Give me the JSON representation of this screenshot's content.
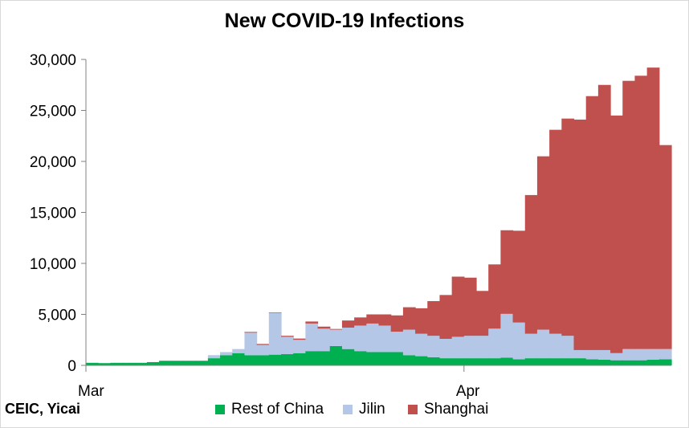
{
  "chart_data": {
    "type": "bar",
    "stacked": true,
    "title": "New COVID-19 Infections",
    "xlabel": "",
    "ylabel": "",
    "ylim": [
      0,
      30000
    ],
    "y_ticks": [
      "0",
      "5,000",
      "10,000",
      "15,000",
      "20,000",
      "25,000",
      "30,000"
    ],
    "y_tick_values": [
      0,
      5000,
      10000,
      15000,
      20000,
      25000,
      30000
    ],
    "x_tick_labels": [
      {
        "label": "Mar",
        "index": 0
      },
      {
        "label": "Apr",
        "index": 31
      }
    ],
    "grid": false,
    "legend_position": "bottom",
    "series": [
      {
        "name": "Rest of China",
        "color": "#00b050",
        "values": [
          250,
          220,
          250,
          250,
          250,
          320,
          450,
          450,
          450,
          450,
          700,
          1000,
          1200,
          1000,
          1000,
          1050,
          1100,
          1200,
          1400,
          1400,
          1900,
          1600,
          1400,
          1300,
          1300,
          1300,
          1000,
          900,
          800,
          700,
          700,
          700,
          700,
          700,
          750,
          600,
          700,
          700,
          700,
          700,
          700,
          600,
          550,
          500,
          500,
          500,
          550,
          600
        ]
      },
      {
        "name": "Jilin",
        "color": "#b4c7e7",
        "values": [
          0,
          0,
          0,
          0,
          0,
          0,
          0,
          0,
          0,
          0,
          300,
          300,
          400,
          2200,
          1000,
          4100,
          1700,
          1300,
          2700,
          2200,
          1600,
          2100,
          2500,
          2800,
          2600,
          2000,
          2500,
          2200,
          2100,
          1900,
          2100,
          2200,
          2200,
          2900,
          4300,
          3600,
          2400,
          2800,
          2400,
          2200,
          800,
          900,
          950,
          700,
          1100,
          1100,
          1050,
          1000
        ]
      },
      {
        "name": "Shanghai",
        "color": "#c0504d",
        "values": [
          0,
          0,
          0,
          0,
          0,
          0,
          0,
          0,
          0,
          0,
          0,
          0,
          0,
          80,
          100,
          50,
          100,
          130,
          200,
          200,
          70,
          700,
          800,
          900,
          1100,
          1600,
          2200,
          2500,
          3400,
          4300,
          5900,
          5700,
          4400,
          6300,
          8200,
          9000,
          13600,
          17000,
          20000,
          21300,
          22600,
          24900,
          26000,
          23300,
          26300,
          26800,
          27600,
          20000
        ]
      }
    ]
  },
  "legend": {
    "items": [
      {
        "label": "Rest of China",
        "color": "#00b050"
      },
      {
        "label": "Jilin",
        "color": "#b4c7e7"
      },
      {
        "label": "Shanghai",
        "color": "#c0504d"
      }
    ]
  },
  "source": "CEIC, Yicai"
}
